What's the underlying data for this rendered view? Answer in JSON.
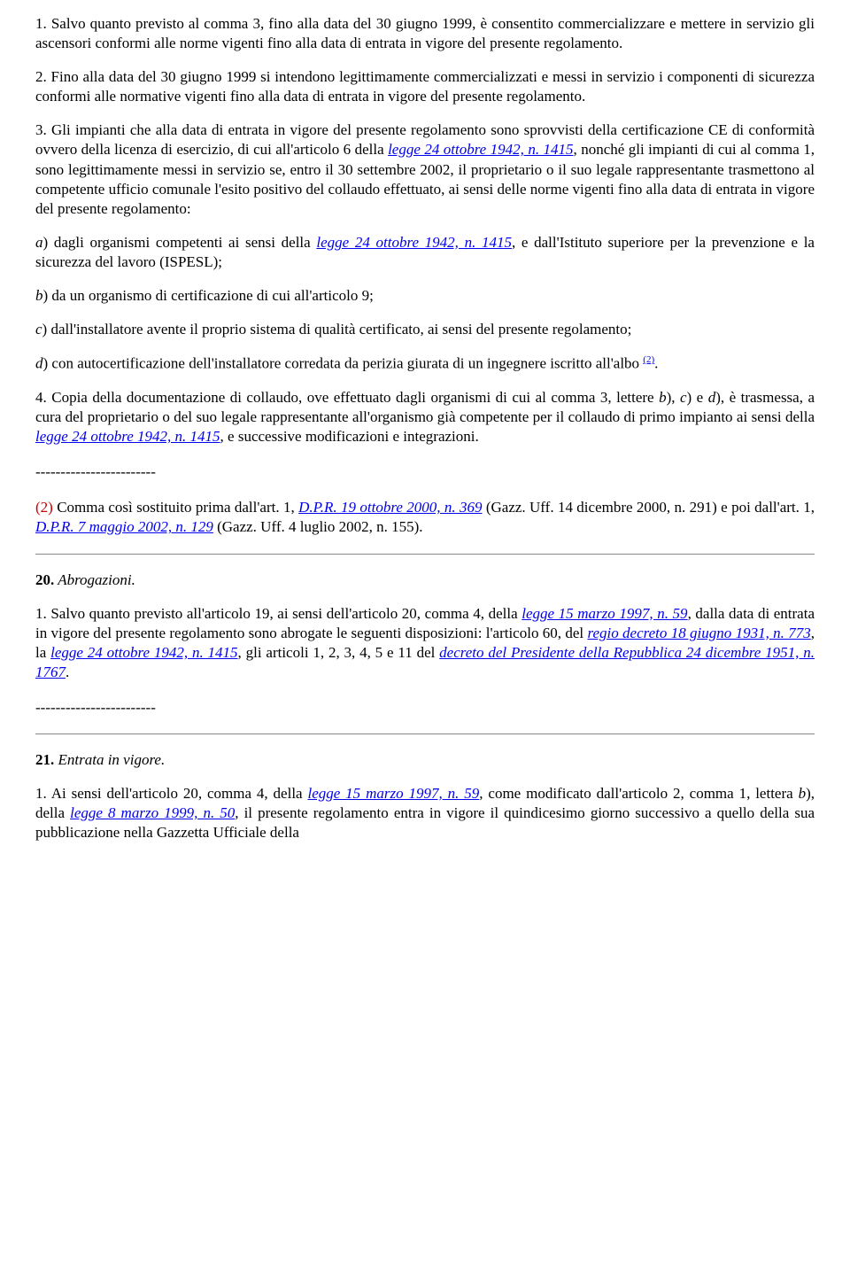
{
  "colors": {
    "text": "#000000",
    "link": "#0000ee",
    "red": "#cc0000",
    "hr": "#888888",
    "background": "#ffffff"
  },
  "typography": {
    "font_family": "Times New Roman",
    "body_size_pt": 13,
    "sup_size_pt": 8
  },
  "p1": "1. Salvo quanto previsto al comma 3, fino alla data del 30 giugno 1999, è consentito commercializzare e mettere in servizio gli ascensori conformi alle norme vigenti fino alla data di entrata in vigore del presente regolamento.",
  "p2": "2. Fino alla data del 30 giugno 1999 si intendono legittimamente commercializzati e messi in servizio i componenti di sicurezza conformi alle normative vigenti fino alla data di entrata in vigore del presente regolamento.",
  "p3_a": "3. Gli impianti che alla data di entrata in vigore del presente regolamento sono sprovvisti della certificazione CE di conformità ovvero della licenza di esercizio, di cui all'articolo 6 della ",
  "p3_link1": "legge 24 ottobre 1942, n. 1415",
  "p3_b": ", nonché gli impianti di cui al comma 1, sono legittimamente messi in servizio se, entro il 30 settembre 2002, il proprietario o il suo legale rappresentante trasmettono al competente ufficio comunale l'esito positivo del collaudo effettuato, ai sensi delle norme vigenti fino alla data di entrata in vigore del presente regolamento:",
  "pa_a": "a",
  "pa_b": ") dagli organismi competenti ai sensi della ",
  "pa_link": "legge 24 ottobre 1942, n. 1415",
  "pa_c": ", e dall'Istituto superiore per la prevenzione e la sicurezza del lavoro (ISPESL);",
  "pb_a": "b",
  "pb_b": ") da un organismo di certificazione di cui all'articolo 9;",
  "pc_a": "c",
  "pc_b": ") dall'installatore avente il proprio sistema di qualità certificato, ai sensi del presente regolamento;",
  "pd_a": "d",
  "pd_b": ") con autocertificazione dell'installatore corredata da perizia giurata di un ingegnere iscritto all'albo ",
  "pd_sup": "(2)",
  "pd_c": ".",
  "p4_a": "4. Copia della documentazione di collaudo, ove effettuato dagli organismi di cui al comma 3, lettere ",
  "p4_b": "b",
  "p4_c": "), ",
  "p4_d": "c",
  "p4_e": ") e ",
  "p4_f": "d",
  "p4_g": "), è trasmessa, a cura del proprietario o del suo legale rappresentante all'organismo già competente per il collaudo di primo impianto ai sensi della ",
  "p4_link": "legge 24 ottobre 1942, n. 1415",
  "p4_h": ", e successive modificazioni e integrazioni.",
  "dashes": "------------------------",
  "note2_a": "(2)",
  "note2_b": " Comma così sostituito prima dall'art. 1, ",
  "note2_link1": "D.P.R. 19 ottobre 2000, n. 369",
  "note2_c": " (Gazz. Uff. 14 dicembre 2000, n. 291) e poi dall'art. 1, ",
  "note2_link2": "D.P.R. 7 maggio 2002, n. 129",
  "note2_d": " (Gazz. Uff. 4 luglio 2002, n. 155).",
  "s20_num": "20.",
  "s20_title": " Abrogazioni.",
  "s20_p_a": "1. Salvo quanto previsto all'articolo 19, ai sensi dell'articolo 20, comma 4, della ",
  "s20_link1": "legge 15 marzo 1997, n. 59",
  "s20_p_b": ", dalla data di entrata in vigore del presente regolamento sono abrogate le seguenti disposizioni: l'articolo 60, del ",
  "s20_link2": "regio decreto 18 giugno 1931, n. 773",
  "s20_p_c": ", la ",
  "s20_link3": "legge 24 ottobre 1942, n. 1415",
  "s20_p_d": ", gli articoli 1, 2, 3, 4, 5 e 11 del ",
  "s20_link4": "decreto del Presidente della Repubblica 24 dicembre 1951, n. 1767",
  "s20_p_e": ".",
  "s21_num": "21.",
  "s21_title": " Entrata in vigore.",
  "s21_p_a": "1. Ai sensi dell'articolo 20, comma 4, della ",
  "s21_link1": "legge 15 marzo 1997, n. 59",
  "s21_p_b": ", come modificato dall'articolo 2, comma 1, lettera ",
  "s21_p_c": "b",
  "s21_p_d": "), della ",
  "s21_link2": "legge 8 marzo 1999, n. 50",
  "s21_p_e": ", il presente regolamento entra in vigore il quindicesimo giorno successivo a quello della sua pubblicazione nella Gazzetta Ufficiale della"
}
